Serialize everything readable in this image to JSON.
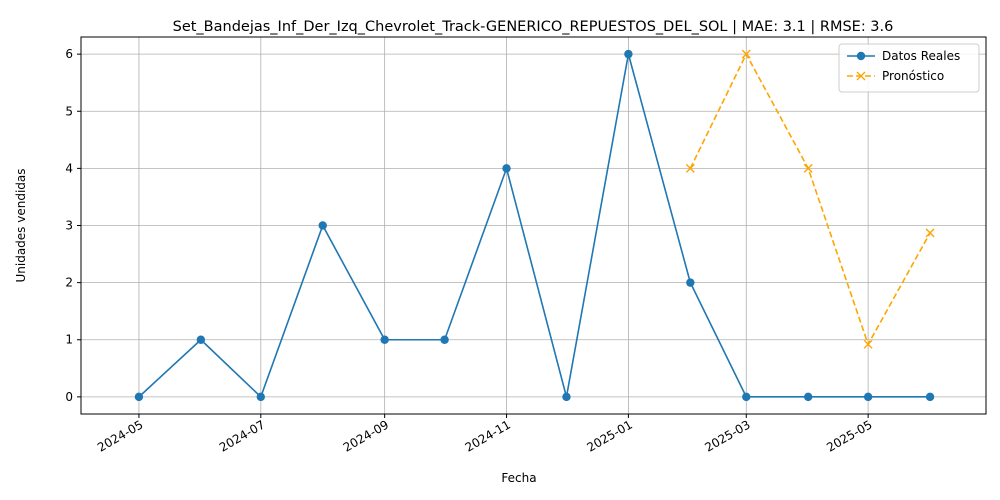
{
  "chart_data": {
    "type": "line",
    "title": "Set_Bandejas_Inf_Der_Izq_Chevrolet_Track-GENERICO_REPUESTOS_DEL_SOL | MAE: 3.1 | RMSE: 3.6",
    "xlabel": "Fecha",
    "ylabel": "Unidades vendidas",
    "ylim": [
      -0.3,
      6.3
    ],
    "xlim": [
      "2024-04-02",
      "2025-06-29"
    ],
    "grid": true,
    "legend_position": "top-right",
    "x_ticks": [
      "2024-05-01",
      "2024-07-01",
      "2024-09-01",
      "2024-11-01",
      "2025-01-01",
      "2025-03-01",
      "2025-05-01"
    ],
    "x_tick_labels": [
      "2024-05",
      "2024-07",
      "2024-09",
      "2024-11",
      "2025-01",
      "2025-03",
      "2025-05"
    ],
    "y_ticks": [
      0,
      1,
      2,
      3,
      4,
      5,
      6
    ],
    "series": [
      {
        "name": "Datos Reales",
        "color": "#1f77b4",
        "style": "solid",
        "marker": "circle",
        "x": [
          "2024-05-01",
          "2024-06-01",
          "2024-07-01",
          "2024-08-01",
          "2024-09-01",
          "2024-10-01",
          "2024-11-01",
          "2024-12-01",
          "2025-01-01",
          "2025-02-01",
          "2025-03-01",
          "2025-04-01",
          "2025-05-01",
          "2025-06-01"
        ],
        "y": [
          0,
          1,
          0,
          3,
          1,
          1,
          4,
          0,
          6,
          2,
          0,
          0,
          0,
          0
        ]
      },
      {
        "name": "Pronóstico",
        "color": "#ffa500",
        "style": "dashed",
        "marker": "x",
        "x": [
          "2025-02-01",
          "2025-03-01",
          "2025-04-01",
          "2025-05-01",
          "2025-06-01"
        ],
        "y": [
          4.0,
          6.0,
          4.0,
          0.92,
          2.87
        ]
      }
    ]
  }
}
